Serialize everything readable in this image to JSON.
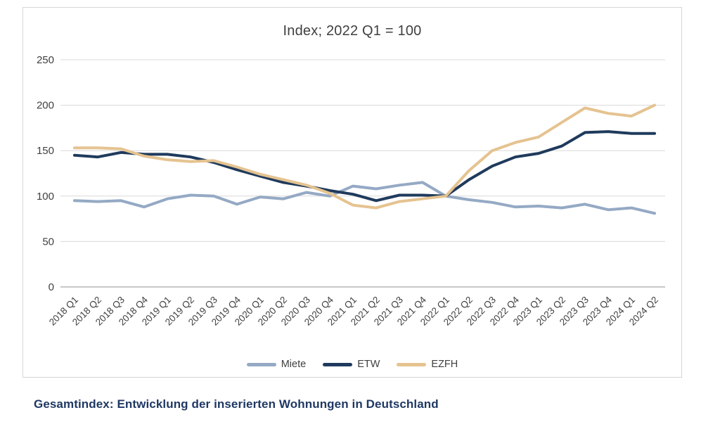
{
  "caption": "Gesamtindex: Entwicklung der inserierten Wohnungen in Deutschland",
  "chart_data": {
    "type": "line",
    "title": "Index; 2022 Q1 = 100",
    "categories": [
      "2018 Q1",
      "2018 Q2",
      "2018 Q3",
      "2018 Q4",
      "2019 Q1",
      "2019 Q2",
      "2019 Q3",
      "2019 Q4",
      "2020 Q1",
      "2020 Q2",
      "2020 Q3",
      "2020 Q4",
      "2021 Q1",
      "2021 Q2",
      "2021 Q3",
      "2021 Q4",
      "2022 Q1",
      "2022 Q2",
      "2022 Q3",
      "2022 Q4",
      "2023 Q1",
      "2023 Q2",
      "2023 Q3",
      "2023 Q4",
      "2024 Q1",
      "2024 Q2"
    ],
    "series": [
      {
        "name": "Miete",
        "color": "#94a9c4",
        "values": [
          95,
          94,
          95,
          88,
          97,
          101,
          100,
          91,
          99,
          97,
          104,
          100,
          111,
          108,
          112,
          115,
          100,
          96,
          93,
          88,
          89,
          87,
          91,
          85,
          87,
          81
        ]
      },
      {
        "name": "ETW",
        "color": "#1f3a5c",
        "values": [
          145,
          143,
          148,
          146,
          146,
          143,
          137,
          129,
          122,
          115,
          111,
          106,
          102,
          95,
          101,
          101,
          100,
          118,
          133,
          143,
          147,
          155,
          170,
          171,
          169,
          169
        ]
      },
      {
        "name": "EZFH",
        "color": "#e5c390",
        "values": [
          153,
          153,
          152,
          144,
          140,
          138,
          139,
          132,
          124,
          118,
          112,
          103,
          90,
          87,
          94,
          97,
          100,
          128,
          150,
          159,
          165,
          181,
          197,
          191,
          188,
          200
        ]
      }
    ],
    "ylim": [
      0,
      250
    ],
    "yticks": [
      0,
      50,
      100,
      150,
      200,
      250
    ],
    "grid": true,
    "legend_position": "bottom",
    "colors": {
      "grid": "#d9d9d9",
      "axis_zero": "#a6a6a6",
      "text": "#404040",
      "caption": "#1f3864"
    }
  }
}
